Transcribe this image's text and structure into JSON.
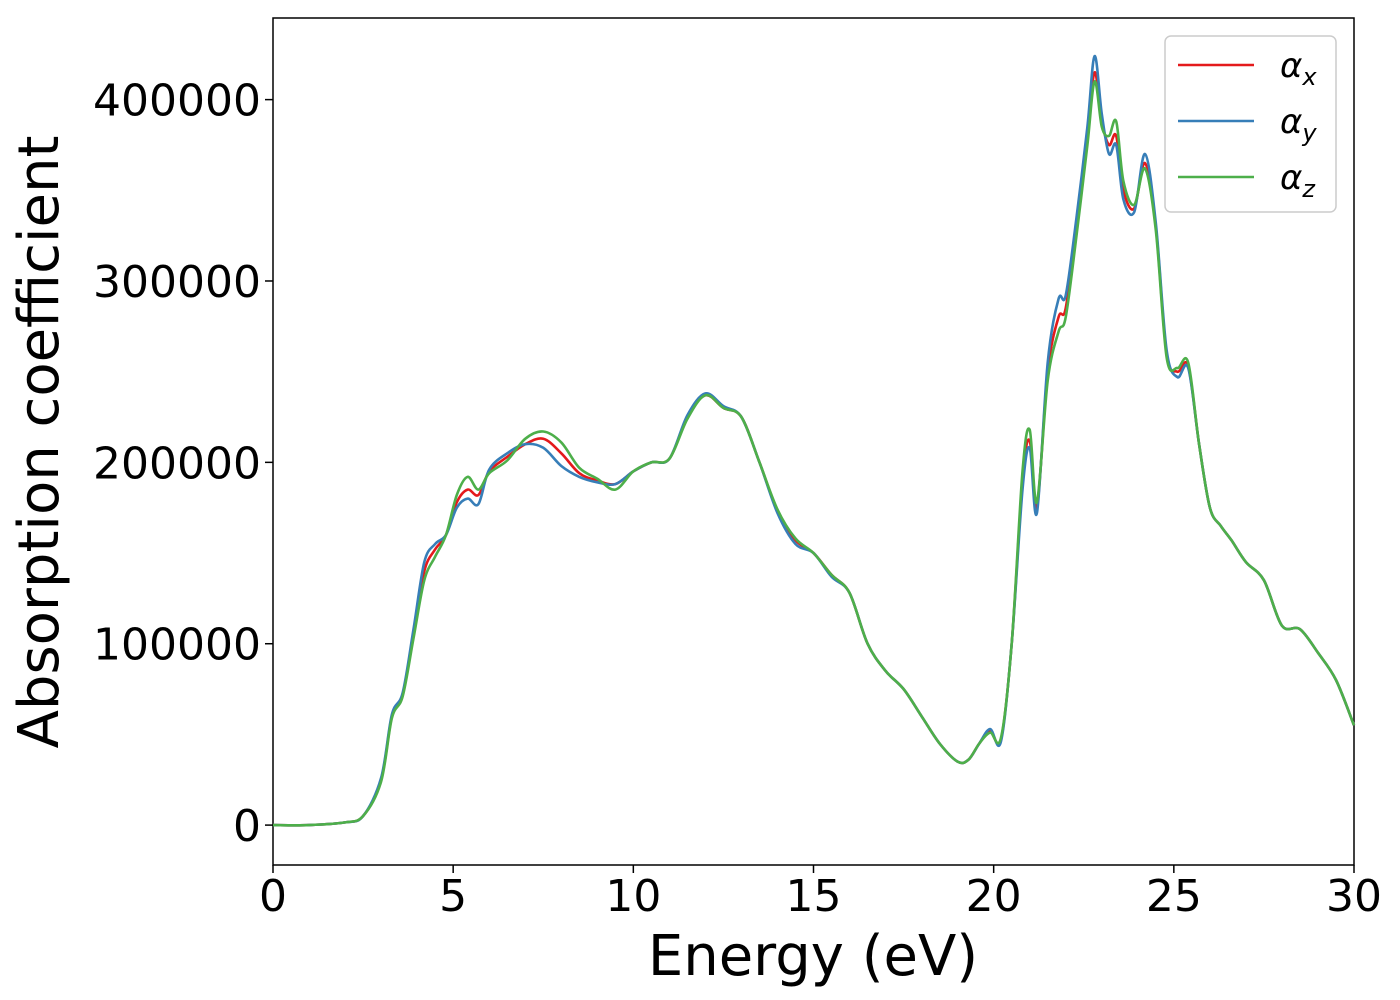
{
  "chart_data": {
    "type": "line",
    "xlabel": "Energy (eV)",
    "ylabel": "Absorption coefficient",
    "xlim": [
      0,
      30
    ],
    "ylim": [
      -22000,
      445000
    ],
    "xticks": [
      0,
      5,
      10,
      15,
      20,
      25,
      30
    ],
    "xtick_labels": [
      "0",
      "5",
      "10",
      "15",
      "20",
      "25",
      "30"
    ],
    "yticks": [
      0,
      100000,
      200000,
      300000,
      400000
    ],
    "ytick_labels": [
      "0",
      "100000",
      "200000",
      "300000",
      "400000"
    ],
    "grid": false,
    "legend_position": "top-right",
    "x": [
      0,
      1,
      2,
      2.5,
      3,
      3.3,
      3.6,
      3.9,
      4.2,
      4.5,
      4.8,
      5.1,
      5.4,
      5.7,
      6,
      6.5,
      7,
      7.5,
      8,
      8.5,
      9,
      9.5,
      10,
      10.5,
      11,
      11.5,
      12,
      12.5,
      13,
      13.5,
      14,
      14.5,
      15,
      15.5,
      16,
      16.5,
      17,
      17.5,
      18,
      18.5,
      19,
      19.3,
      19.6,
      19.9,
      20.2,
      20.5,
      20.8,
      21,
      21.2,
      21.5,
      21.8,
      22,
      22.3,
      22.6,
      22.8,
      23,
      23.2,
      23.4,
      23.6,
      23.9,
      24.2,
      24.5,
      24.8,
      25.1,
      25.4,
      25.7,
      26,
      26.3,
      26.6,
      27,
      27.5,
      28,
      28.5,
      29,
      29.5,
      30
    ],
    "series": [
      {
        "name": "α_x",
        "color": "#e41a1c",
        "values": [
          0,
          0,
          1500,
          5000,
          25000,
          60000,
          72000,
          105000,
          140000,
          152000,
          160000,
          178000,
          185000,
          182000,
          195000,
          203000,
          210000,
          213000,
          205000,
          194000,
          190000,
          188000,
          195000,
          200000,
          202000,
          225000,
          237000,
          230000,
          225000,
          200000,
          173000,
          157000,
          150000,
          138000,
          128000,
          100000,
          85000,
          75000,
          60000,
          45000,
          35000,
          36000,
          45000,
          52000,
          47000,
          100000,
          190000,
          212000,
          175000,
          250000,
          280000,
          285000,
          330000,
          380000,
          415000,
          388000,
          375000,
          380000,
          350000,
          340000,
          365000,
          330000,
          260000,
          250000,
          253000,
          210000,
          175000,
          165000,
          157000,
          145000,
          135000,
          110000,
          108000,
          95000,
          80000,
          55000
        ]
      },
      {
        "name": "α_y",
        "color": "#377eb8",
        "values": [
          0,
          0,
          1500,
          5000,
          26000,
          61000,
          73000,
          108000,
          145000,
          155000,
          160000,
          175000,
          180000,
          177000,
          196000,
          205000,
          210000,
          208000,
          198000,
          192000,
          189000,
          188000,
          195000,
          200000,
          202000,
          226000,
          238000,
          231000,
          225000,
          200000,
          172000,
          155000,
          150000,
          137000,
          128000,
          100000,
          85000,
          75000,
          60000,
          45000,
          35000,
          36000,
          45000,
          53000,
          46000,
          100000,
          185000,
          208000,
          172000,
          255000,
          290000,
          292000,
          335000,
          385000,
          424000,
          392000,
          370000,
          375000,
          345000,
          338000,
          370000,
          332000,
          262000,
          247000,
          252000,
          210000,
          175000,
          165000,
          157000,
          145000,
          135000,
          110000,
          108000,
          95000,
          80000,
          55000
        ]
      },
      {
        "name": "α_z",
        "color": "#4daf4a",
        "values": [
          0,
          0,
          1500,
          5000,
          24000,
          59000,
          71000,
          103000,
          135000,
          148000,
          160000,
          182000,
          192000,
          185000,
          194000,
          201000,
          213000,
          217000,
          211000,
          197000,
          191000,
          185000,
          195000,
          200000,
          202000,
          224000,
          237000,
          230000,
          225000,
          200000,
          174000,
          158000,
          150000,
          138000,
          128000,
          100000,
          85000,
          75000,
          60000,
          45000,
          35000,
          36000,
          45000,
          51000,
          48000,
          100000,
          195000,
          218000,
          178000,
          245000,
          272000,
          280000,
          325000,
          375000,
          410000,
          385000,
          380000,
          388000,
          355000,
          342000,
          362000,
          328000,
          258000,
          252000,
          255000,
          210000,
          175000,
          165000,
          157000,
          145000,
          135000,
          110000,
          108000,
          95000,
          80000,
          55000
        ]
      }
    ],
    "legend": [
      {
        "base": "α",
        "sub": "x"
      },
      {
        "base": "α",
        "sub": "y"
      },
      {
        "base": "α",
        "sub": "z"
      }
    ]
  }
}
